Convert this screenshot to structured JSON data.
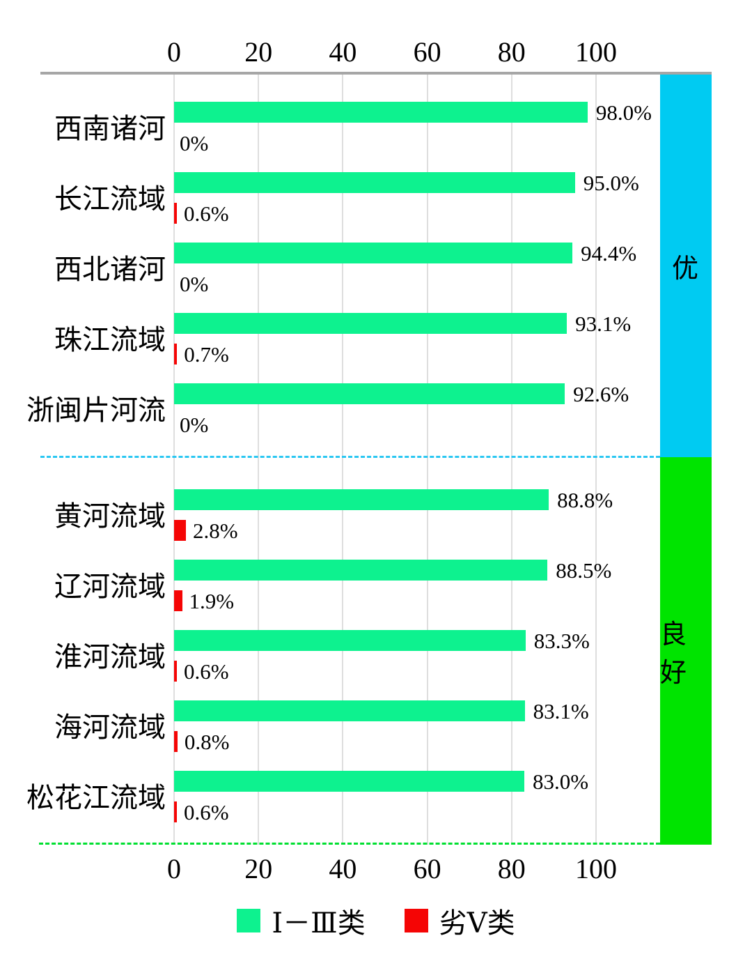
{
  "chart_data": {
    "type": "bar",
    "orientation": "horizontal",
    "title": "",
    "axis": {
      "tick_labels": [
        "0",
        "20",
        "40",
        "60",
        "80",
        "100"
      ],
      "tick_values": [
        0,
        20,
        40,
        60,
        80,
        100
      ],
      "range": [
        0,
        100
      ],
      "grid": true,
      "axis_positions": [
        "top",
        "bottom"
      ]
    },
    "series_meta": {
      "good_name": "Ⅰ－Ⅲ类",
      "good_color": "#0DF28F",
      "bad_name": "劣Ⅴ类",
      "bad_color": "#F50505"
    },
    "groups": [
      {
        "zone_label": "优",
        "zone_color": "#00CBF2",
        "separator_color": "#2BC7F2",
        "rows": [
          {
            "name": "西南诸河",
            "good": 98.0,
            "good_label": "98.0%",
            "bad": 0,
            "bad_label": "0%"
          },
          {
            "name": "长江流域",
            "good": 95.0,
            "good_label": "95.0%",
            "bad": 0.6,
            "bad_label": "0.6%"
          },
          {
            "name": "西北诸河",
            "good": 94.4,
            "good_label": "94.4%",
            "bad": 0,
            "bad_label": "0%"
          },
          {
            "name": "珠江流域",
            "good": 93.1,
            "good_label": "93.1%",
            "bad": 0.7,
            "bad_label": "0.7%"
          },
          {
            "name": "浙闽片河流",
            "good": 92.6,
            "good_label": "92.6%",
            "bad": 0,
            "bad_label": "0%"
          }
        ]
      },
      {
        "zone_label": "良好",
        "zone_color": "#00E400",
        "separator_color": "#00DF30",
        "rows": [
          {
            "name": "黄河流域",
            "good": 88.8,
            "good_label": "88.8%",
            "bad": 2.8,
            "bad_label": "2.8%"
          },
          {
            "name": "辽河流域",
            "good": 88.5,
            "good_label": "88.5%",
            "bad": 1.9,
            "bad_label": "1.9%"
          },
          {
            "name": "淮河流域",
            "good": 83.3,
            "good_label": "83.3%",
            "bad": 0.6,
            "bad_label": "0.6%"
          },
          {
            "name": "海河流域",
            "good": 83.1,
            "good_label": "83.1%",
            "bad": 0.8,
            "bad_label": "0.8%"
          },
          {
            "name": "松花江流域",
            "good": 83.0,
            "good_label": "83.0%",
            "bad": 0.6,
            "bad_label": "0.6%"
          }
        ]
      }
    ],
    "legend": [
      {
        "label": "Ⅰ－Ⅲ类",
        "color": "#0DF28F"
      },
      {
        "label": "劣Ⅴ类",
        "color": "#F50505"
      }
    ],
    "legend_position": "bottom-center"
  },
  "colors": {
    "axis_line": "#A6A6A6",
    "gridline": "#DEDEDE",
    "text": "#000000",
    "background": "#FFFFFF"
  }
}
